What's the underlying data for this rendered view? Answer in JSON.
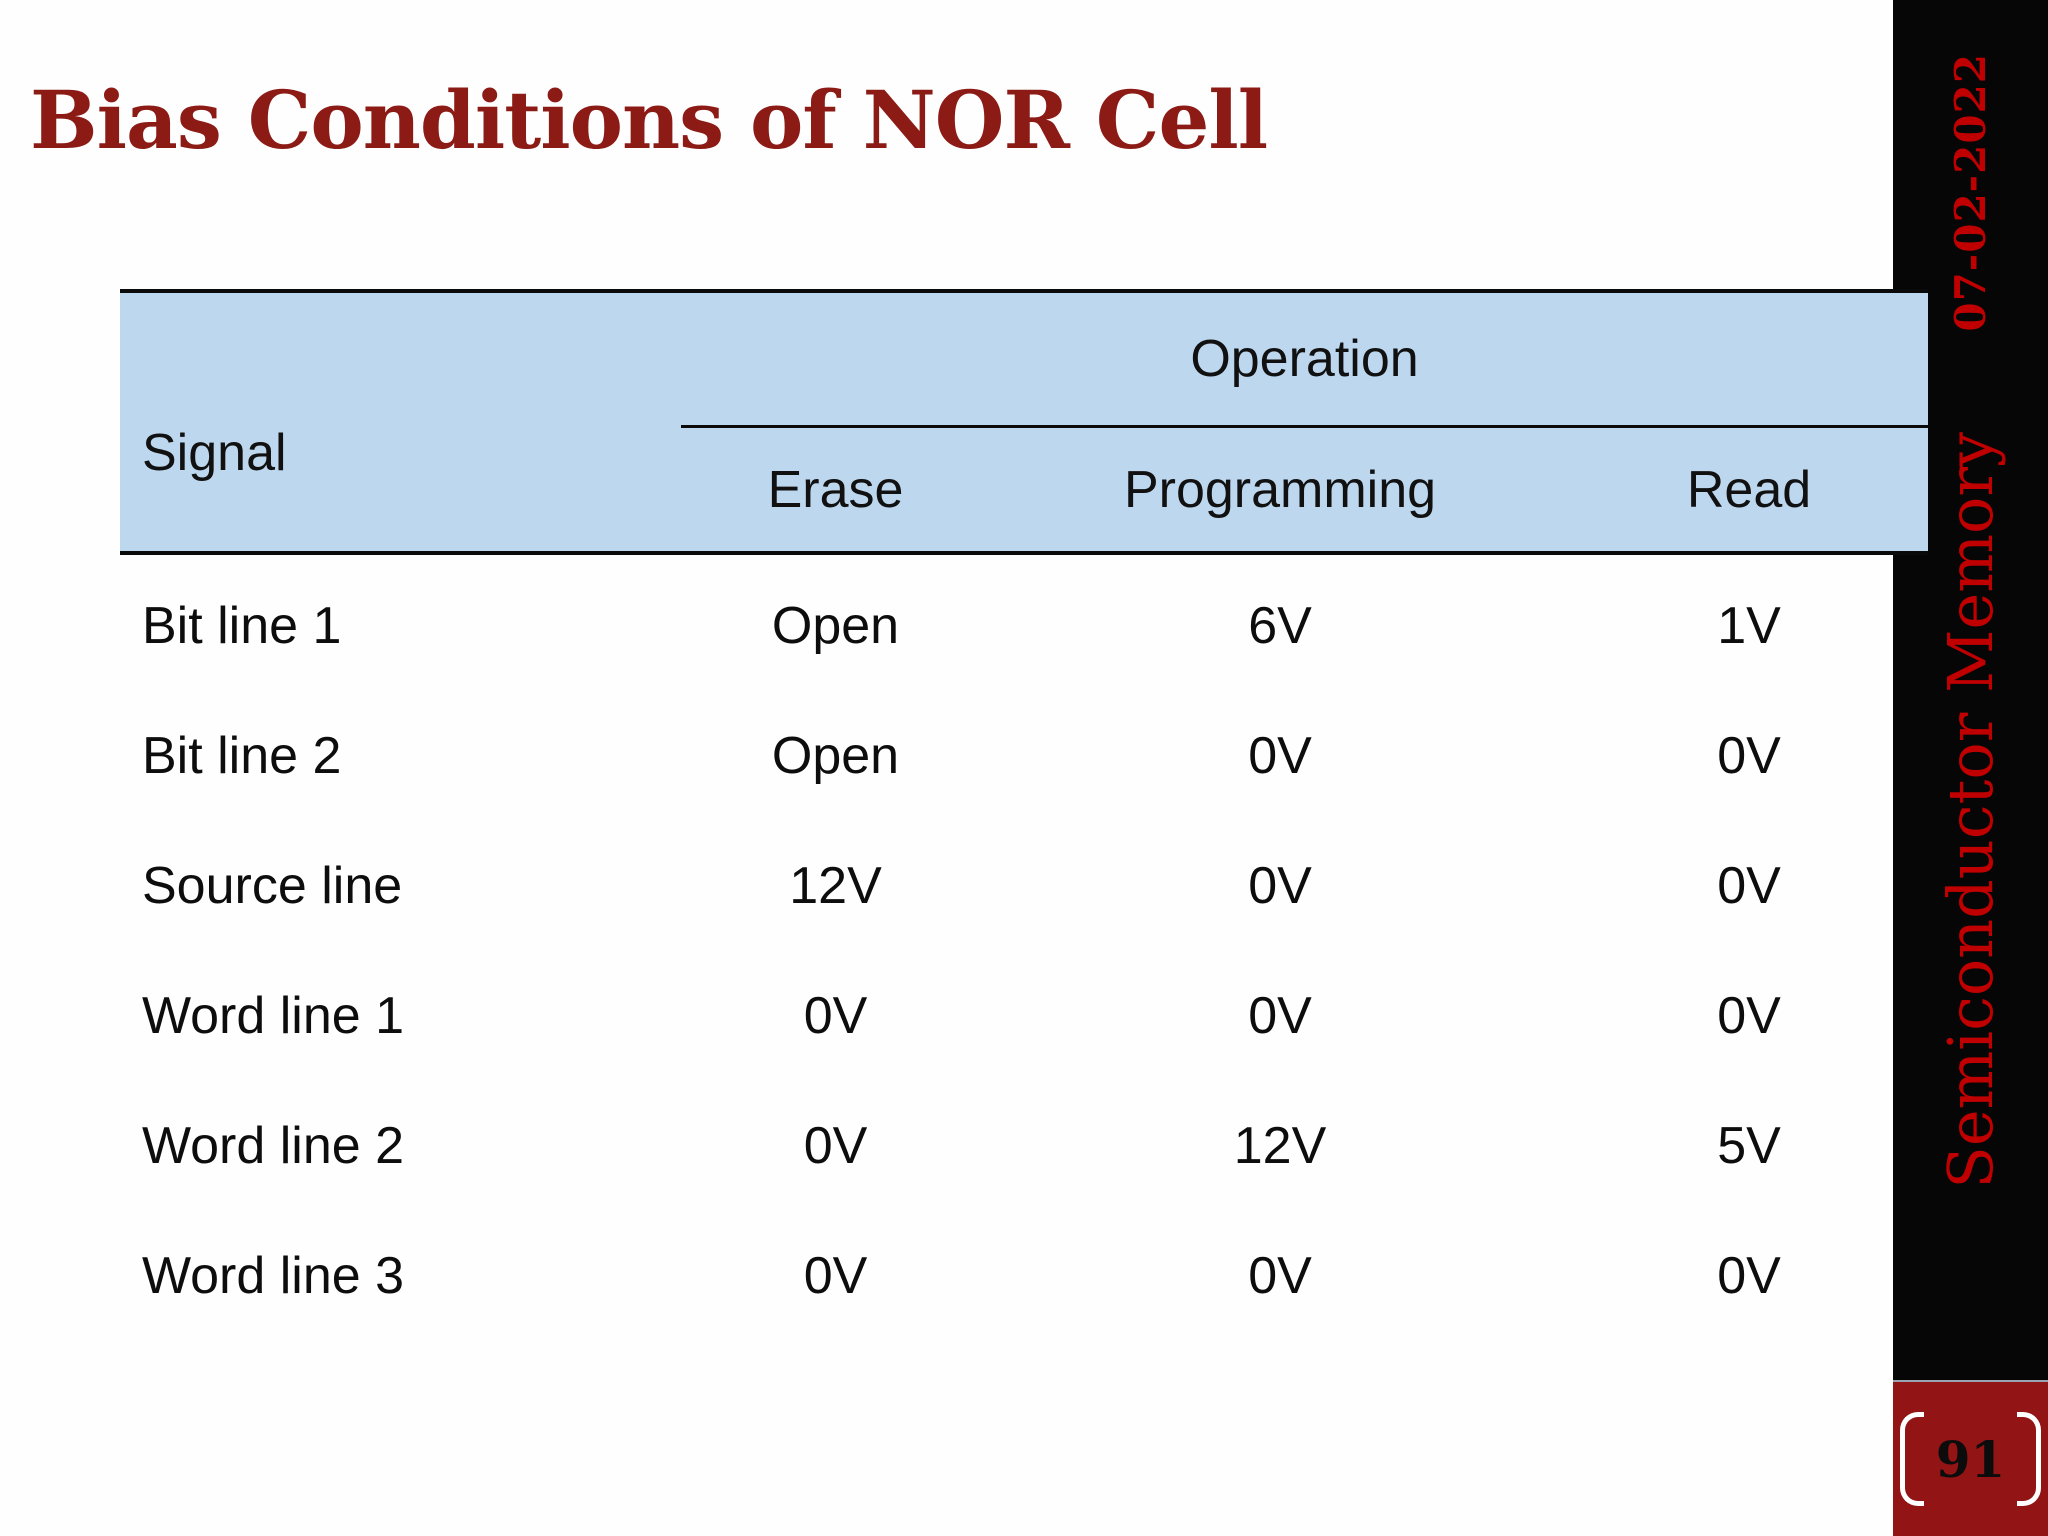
{
  "title": "Bias Conditions of NOR Cell",
  "sidebar": {
    "date": "07-02-2022",
    "course": "Semiconductor Memory",
    "page_number": "91"
  },
  "table": {
    "signal_header": "Signal",
    "operation_header": "Operation",
    "columns": [
      "Erase",
      "Programming",
      "Read"
    ],
    "rows": [
      {
        "signal": "Bit line 1",
        "erase": "Open",
        "programming": "6V",
        "read": "1V"
      },
      {
        "signal": "Bit line 2",
        "erase": "Open",
        "programming": "0V",
        "read": "0V"
      },
      {
        "signal": "Source line",
        "erase": "12V",
        "programming": "0V",
        "read": "0V"
      },
      {
        "signal": "Word line 1",
        "erase": "0V",
        "programming": "0V",
        "read": "0V"
      },
      {
        "signal": "Word line 2",
        "erase": "0V",
        "programming": "12V",
        "read": "5V"
      },
      {
        "signal": "Word line 3",
        "erase": "0V",
        "programming": "0V",
        "read": "0V"
      }
    ]
  },
  "colors": {
    "header_fill": "#bdd7ee",
    "accent_red": "#c00000",
    "title_maroon": "#8c1a15",
    "page_box_fill": "#931414",
    "sidebar_black": "#060606"
  }
}
